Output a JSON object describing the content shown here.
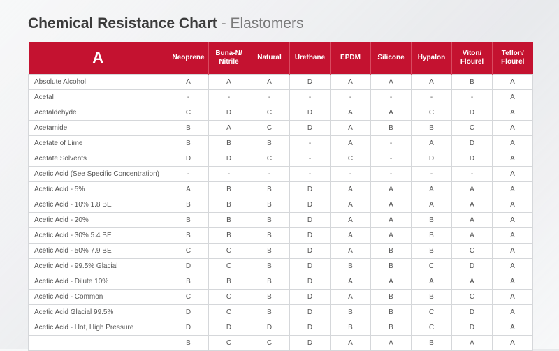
{
  "title": {
    "bold": "Chemical Resistance Chart",
    "sep": " - ",
    "light": "Elastomers"
  },
  "table": {
    "header_letter": "A",
    "header_bg": "#c41230",
    "header_fg": "#ffffff",
    "cell_bg": "#ffffff",
    "cell_border": "#d5d7da",
    "columns": [
      "Neoprene",
      "Buna-N/\nNitrile",
      "Natural",
      "Urethane",
      "EPDM",
      "Silicone",
      "Hypalon",
      "Viton/\nFlourel",
      "Teflon/\nFlourel"
    ],
    "rows": [
      {
        "label": "Absolute Alcohol",
        "cells": [
          "A",
          "A",
          "A",
          "D",
          "A",
          "A",
          "A",
          "B",
          "A"
        ]
      },
      {
        "label": "Acetal",
        "cells": [
          "-",
          "-",
          "-",
          "-",
          "-",
          "-",
          "-",
          "-",
          "A"
        ]
      },
      {
        "label": "Acetaldehyde",
        "cells": [
          "C",
          "D",
          "C",
          "D",
          "A",
          "A",
          "C",
          "D",
          "A"
        ]
      },
      {
        "label": "Acetamide",
        "cells": [
          "B",
          "A",
          "C",
          "D",
          "A",
          "B",
          "B",
          "C",
          "A"
        ]
      },
      {
        "label": "Acetate of Lime",
        "cells": [
          "B",
          "B",
          "B",
          "-",
          "A",
          "-",
          "A",
          "D",
          "A"
        ]
      },
      {
        "label": "Acetate Solvents",
        "cells": [
          "D",
          "D",
          "C",
          "-",
          "C",
          "-",
          "D",
          "D",
          "A"
        ]
      },
      {
        "label": "Acetic Acid (See Specific Concentration)",
        "cells": [
          "-",
          "-",
          "-",
          "-",
          "-",
          "-",
          "-",
          "-",
          "A"
        ]
      },
      {
        "label": "Acetic Acid - 5%",
        "cells": [
          "A",
          "B",
          "B",
          "D",
          "A",
          "A",
          "A",
          "A",
          "A"
        ]
      },
      {
        "label": "Acetic Acid - 10% 1.8 BE",
        "cells": [
          "B",
          "B",
          "B",
          "D",
          "A",
          "A",
          "A",
          "A",
          "A"
        ]
      },
      {
        "label": "Acetic Acid - 20%",
        "cells": [
          "B",
          "B",
          "B",
          "D",
          "A",
          "A",
          "B",
          "A",
          "A"
        ]
      },
      {
        "label": "Acetic Acid - 30% 5.4 BE",
        "cells": [
          "B",
          "B",
          "B",
          "D",
          "A",
          "A",
          "B",
          "A",
          "A"
        ]
      },
      {
        "label": "Acetic Acid - 50% 7.9 BE",
        "cells": [
          "C",
          "C",
          "B",
          "D",
          "A",
          "B",
          "B",
          "C",
          "A"
        ]
      },
      {
        "label": "Acetic Acid - 99.5% Glacial",
        "cells": [
          "D",
          "C",
          "B",
          "D",
          "B",
          "B",
          "C",
          "D",
          "A"
        ]
      },
      {
        "label": "Acetic Acid - Dilute 10%",
        "cells": [
          "B",
          "B",
          "B",
          "D",
          "A",
          "A",
          "A",
          "A",
          "A"
        ]
      },
      {
        "label": "Acetic Acid - Common",
        "cells": [
          "C",
          "C",
          "B",
          "D",
          "A",
          "B",
          "B",
          "C",
          "A"
        ]
      },
      {
        "label": "Acetic Acid Glacial 99.5%",
        "cells": [
          "D",
          "C",
          "B",
          "D",
          "B",
          "B",
          "C",
          "D",
          "A"
        ]
      },
      {
        "label": "Acetic Acid - Hot, High Pressure",
        "cells": [
          "D",
          "D",
          "D",
          "D",
          "B",
          "B",
          "C",
          "D",
          "A"
        ]
      },
      {
        "label": "",
        "cells": [
          "B",
          "C",
          "C",
          "D",
          "A",
          "A",
          "B",
          "A",
          "A"
        ]
      }
    ]
  }
}
